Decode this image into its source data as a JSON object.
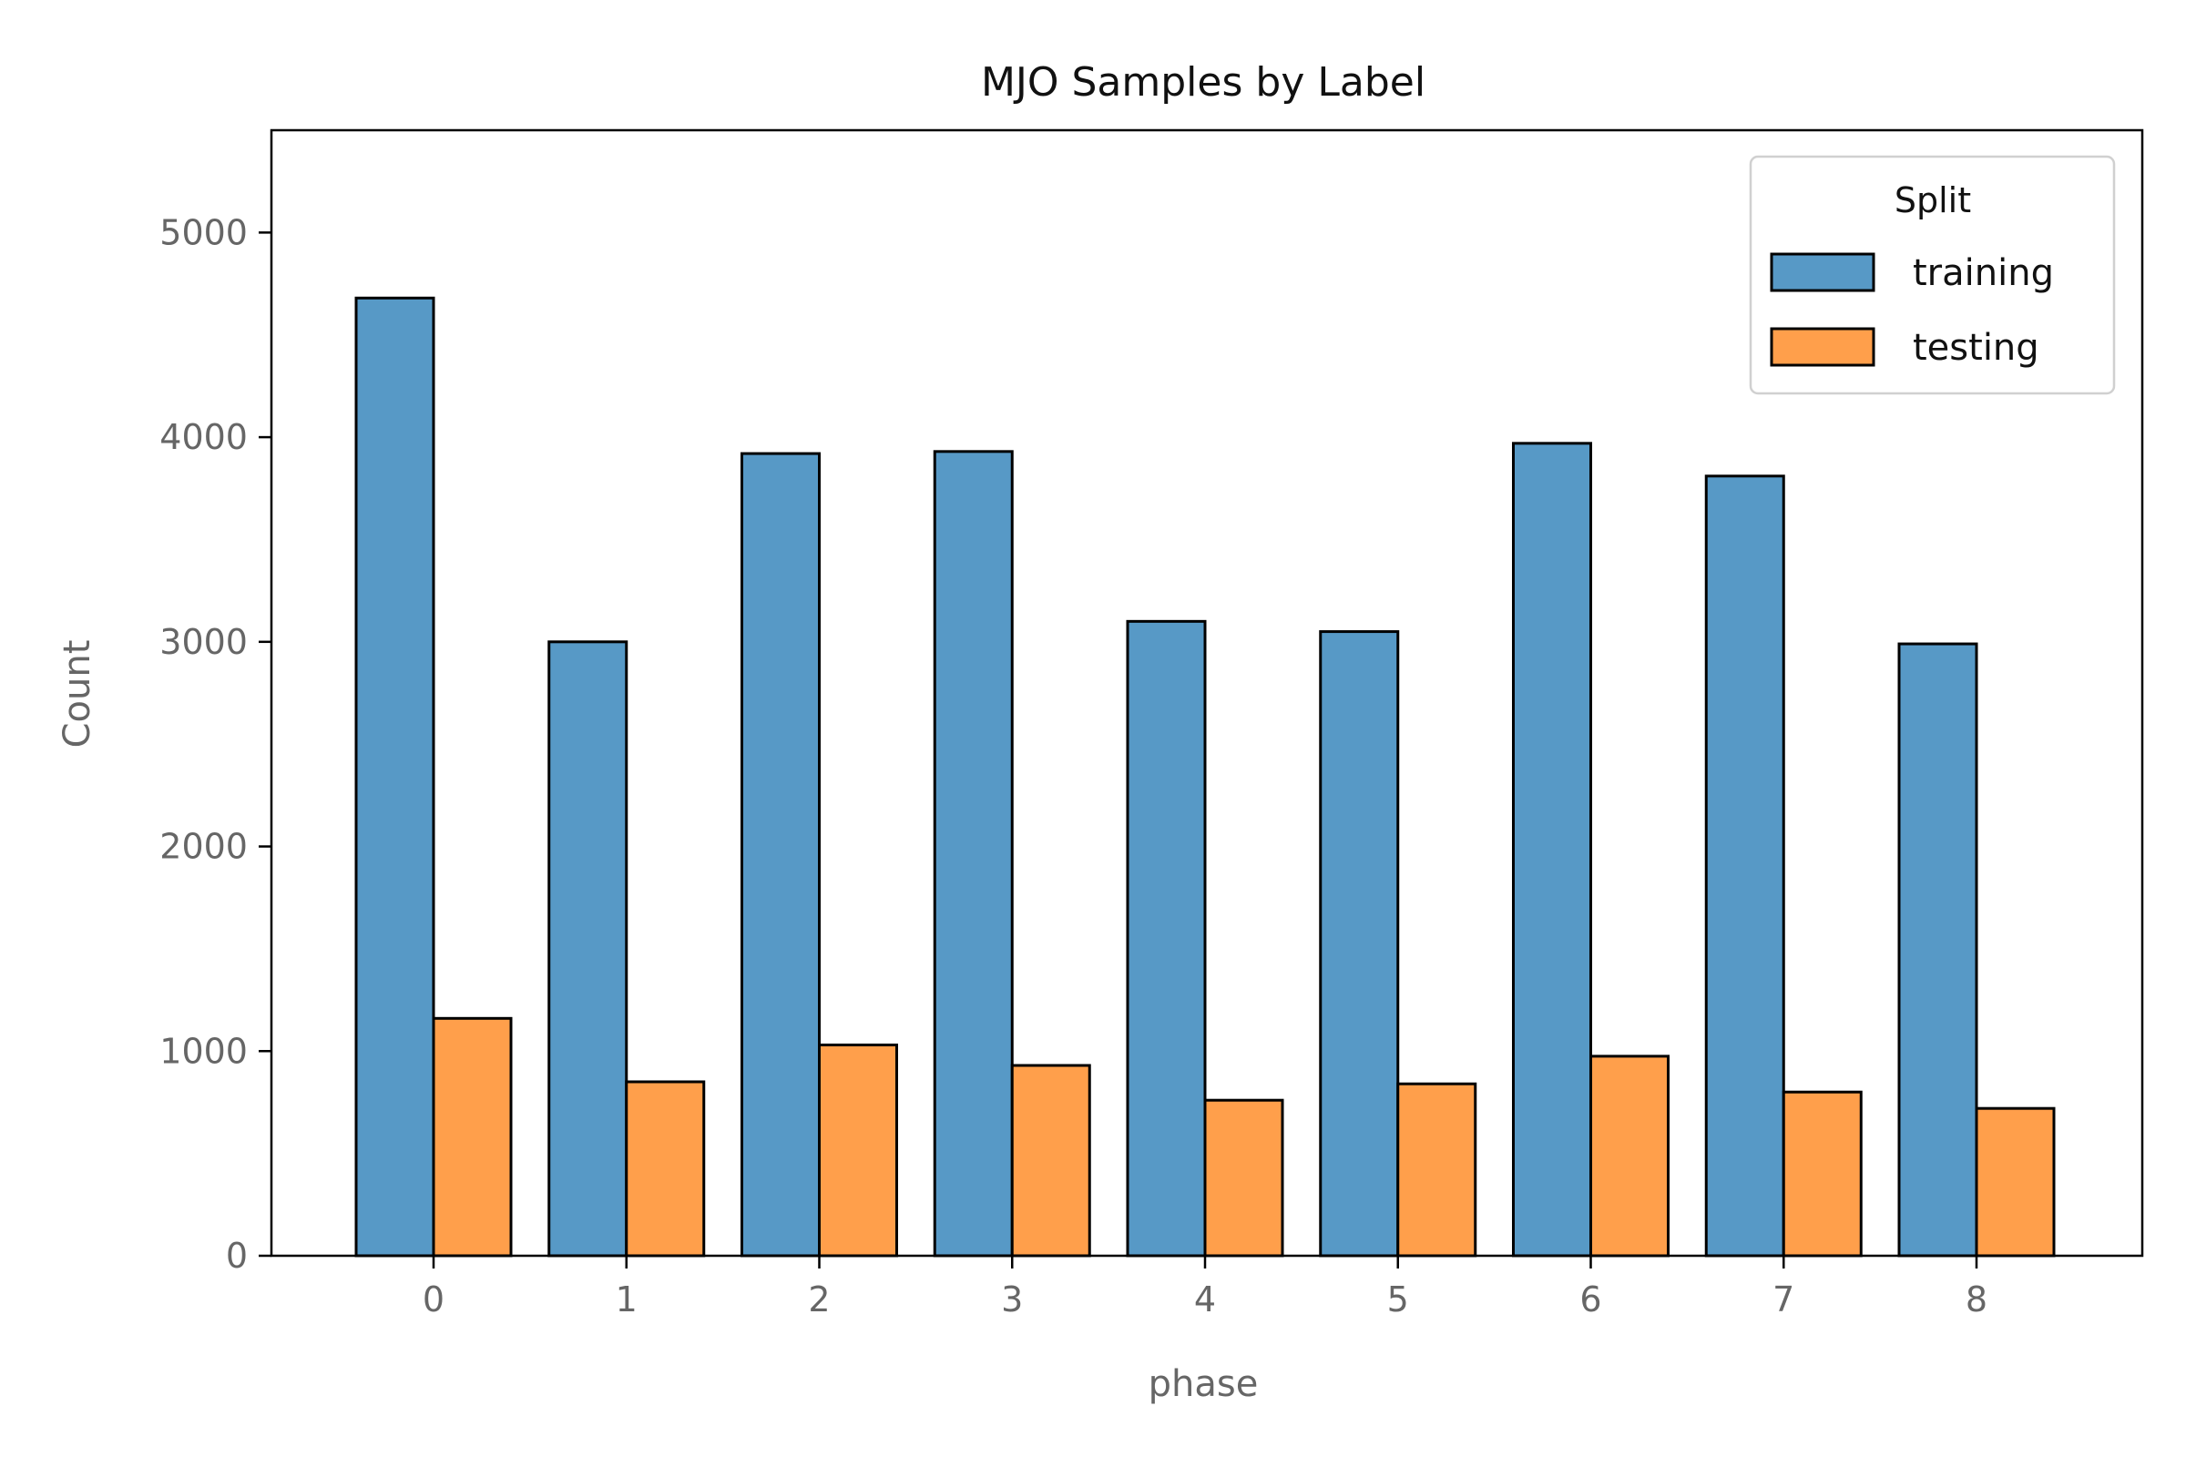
{
  "chart_data": {
    "type": "bar",
    "title": "MJO Samples by Label",
    "xlabel": "phase",
    "ylabel": "Count",
    "categories": [
      "0",
      "1",
      "2",
      "3",
      "4",
      "5",
      "6",
      "7",
      "8"
    ],
    "series": [
      {
        "name": "training",
        "color": "#5799c6",
        "values": [
          4680,
          3000,
          3920,
          3930,
          3100,
          3050,
          3970,
          3810,
          2990
        ]
      },
      {
        "name": "testing",
        "color": "#ff9f4b",
        "values": [
          1160,
          850,
          1030,
          930,
          760,
          840,
          975,
          800,
          720
        ]
      }
    ],
    "ylim": [
      0,
      5500
    ],
    "yticks": [
      0,
      1000,
      2000,
      3000,
      4000,
      5000
    ],
    "grid": false,
    "legend": {
      "title": "Split",
      "position": "top-right"
    }
  }
}
